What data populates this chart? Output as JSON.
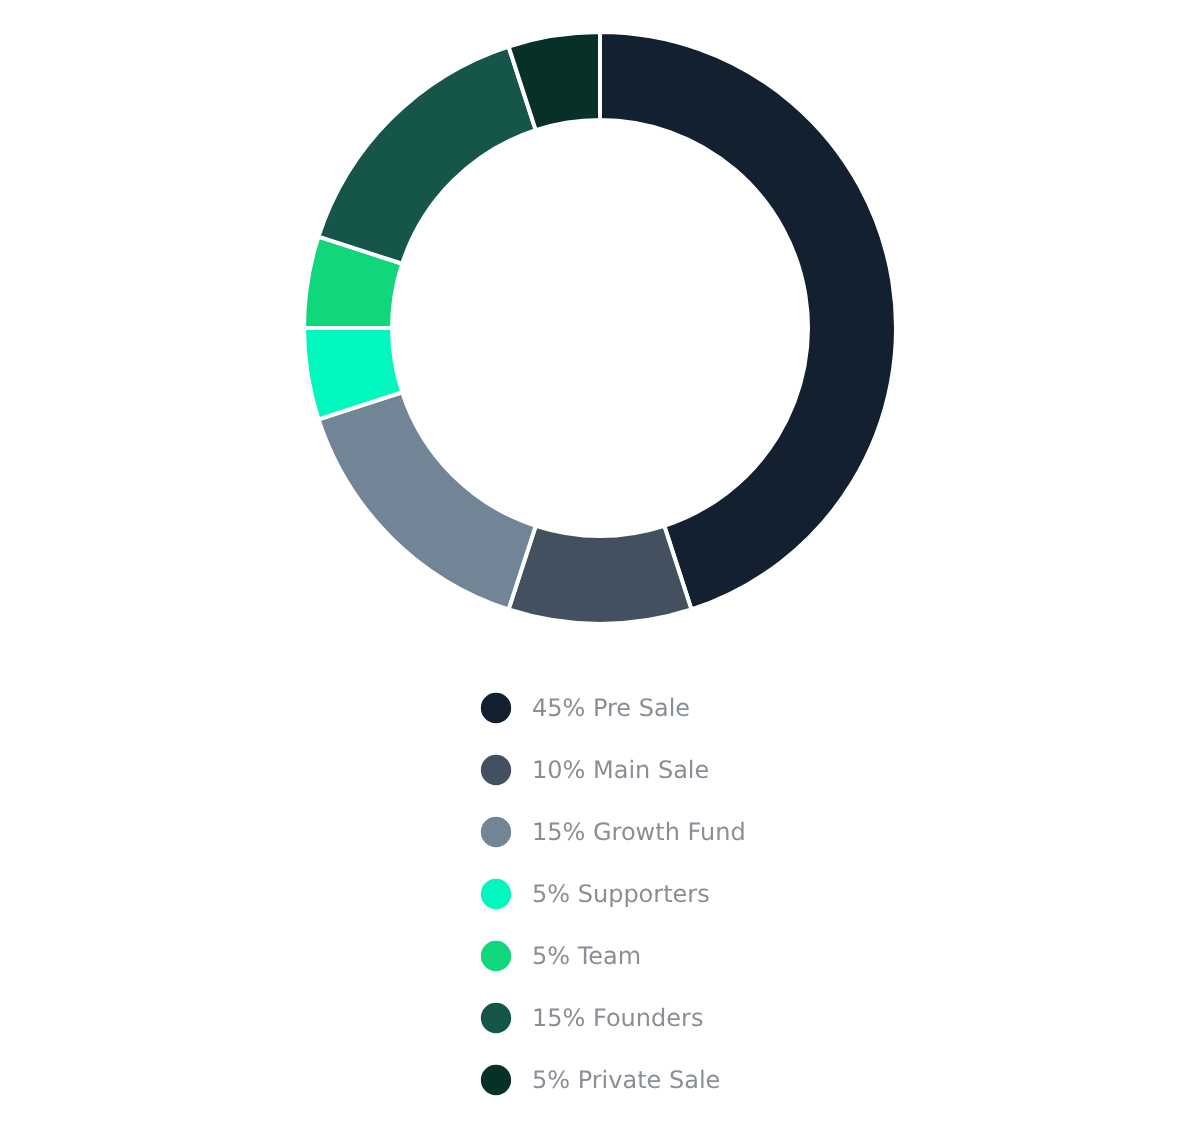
{
  "chart_data": {
    "type": "donut",
    "categories": [
      "45% Pre Sale",
      "10% Main Sale",
      "15% Growth Fund",
      "5% Supporters",
      "5% Team",
      "15% Founders",
      "5% Private Sale"
    ],
    "values": [
      45,
      10,
      15,
      5,
      5,
      15,
      5
    ],
    "colors": [
      "#13202f",
      "#435060",
      "#718597",
      "#00f8bf",
      "#10d67c",
      "#16554a",
      "#063028"
    ],
    "legend": "bottom"
  }
}
